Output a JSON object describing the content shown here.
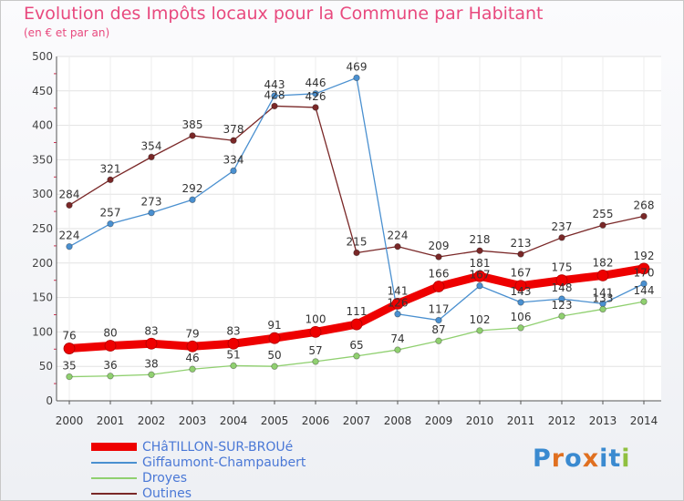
{
  "chart_data": {
    "type": "line",
    "title": "Evolution des Impôts locaux pour la Commune par Habitant",
    "subtitle": "(en € et par an)",
    "xlabel": "",
    "ylabel": "",
    "ylim": [
      0,
      500
    ],
    "yticks": [
      0,
      50,
      100,
      150,
      200,
      250,
      300,
      350,
      400,
      450,
      500
    ],
    "grid": true,
    "legend_position": "bottom-left",
    "x": [
      "2000",
      "2001",
      "2002",
      "2003",
      "2004",
      "2005",
      "2006",
      "2007",
      "2008",
      "2009",
      "2010",
      "2011",
      "2012",
      "2013",
      "2014"
    ],
    "series": [
      {
        "name": "Outines",
        "color": "#7a2828",
        "values": [
          284,
          321,
          354,
          385,
          378,
          428,
          426,
          215,
          224,
          209,
          218,
          213,
          237,
          255,
          268
        ],
        "labels": [
          "284",
          "321",
          "354",
          "385",
          "378",
          "428",
          "426",
          "215",
          "224",
          "209",
          "218",
          "213",
          "237",
          "255",
          "268"
        ]
      },
      {
        "name": "Giffaumont-Champaubert",
        "color": "#4a90d0",
        "values": [
          224,
          257,
          273,
          292,
          334,
          443,
          446,
          469,
          126,
          117,
          167,
          143,
          148,
          141,
          170
        ],
        "labels": [
          "224",
          "257",
          "273",
          "292",
          "334",
          "443",
          "446",
          "469",
          "126",
          "117",
          "167",
          "143",
          "148",
          "141",
          "170"
        ]
      },
      {
        "name": "Droyes",
        "color": "#90d070",
        "values": [
          35,
          36,
          38,
          46,
          51,
          50,
          57,
          65,
          74,
          87,
          102,
          106,
          123,
          133,
          144
        ],
        "labels": [
          "35",
          "36",
          "38",
          "46",
          "51",
          "50",
          "57",
          "65",
          "74",
          "87",
          "102",
          "106",
          "123",
          "133",
          "144"
        ]
      },
      {
        "name": "CHâTILLON-SUR-BROUé",
        "color": "#ee0000",
        "values": [
          76,
          80,
          83,
          79,
          83,
          91,
          100,
          111,
          141,
          166,
          181,
          167,
          175,
          182,
          192
        ],
        "labels": [
          "76",
          "80",
          "83",
          "79",
          "83",
          "91",
          "100",
          "111",
          "141",
          "166",
          "181",
          "167",
          "175",
          "182",
          "192"
        ]
      }
    ]
  },
  "legend": {
    "items": [
      {
        "label": "CHâTILLON-SUR-BROUé",
        "color": "#ee0000"
      },
      {
        "label": "Giffaumont-Champaubert",
        "color": "#4a90d0"
      },
      {
        "label": "Droyes",
        "color": "#90d070"
      },
      {
        "label": "Outines",
        "color": "#7a2828"
      }
    ]
  },
  "logo": {
    "text": "Proxiti",
    "letter_colors": [
      "#3a8ad0",
      "#e07020",
      "#3a8ad0",
      "#e07020",
      "#3a8ad0",
      "#3a8ad0",
      "#90c040"
    ]
  }
}
